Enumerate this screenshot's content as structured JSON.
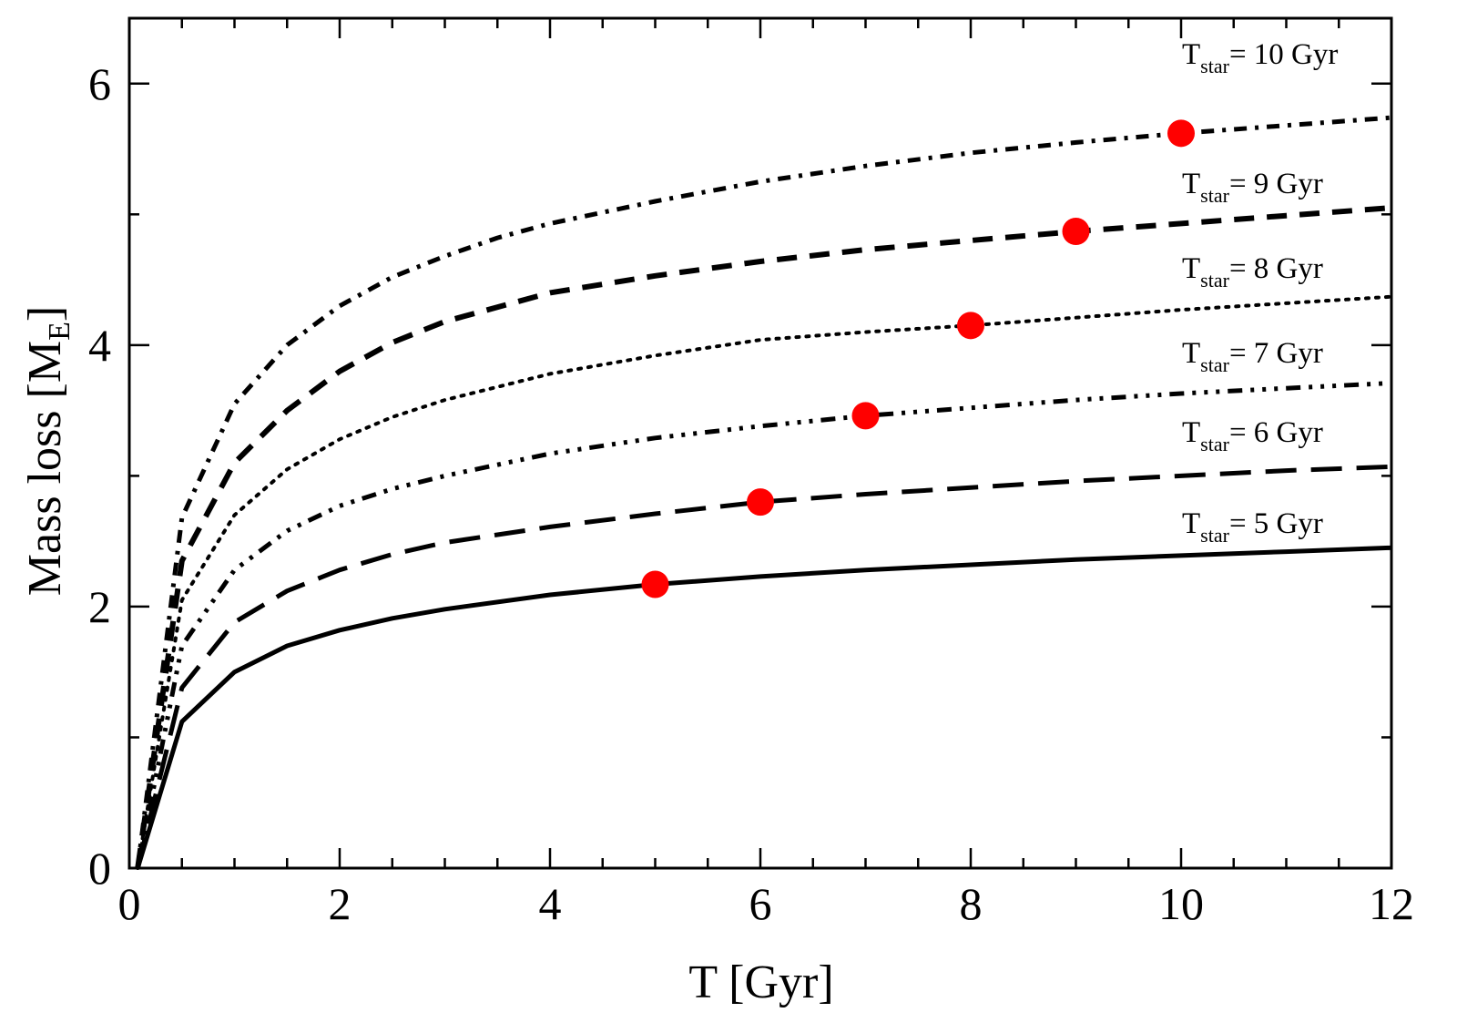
{
  "chart_data": {
    "type": "line",
    "title": "",
    "xlabel": "T [Gyr]",
    "ylabel": "Mass loss [M",
    "ylabel_sub": "E",
    "ylabel_close": "]",
    "xlim": [
      0,
      12
    ],
    "ylim": [
      0,
      6.5
    ],
    "xticks": [
      0,
      2,
      4,
      6,
      8,
      10,
      12
    ],
    "yticks": [
      0,
      2,
      4,
      6
    ],
    "grid": false,
    "legend": "inline labels at right end of each curve",
    "marker_color": "#ff0000",
    "line_color": "#000000",
    "series": [
      {
        "label_main": "T",
        "label_sub": "star",
        "label_rest": "= 5 Gyr",
        "style": "solid",
        "marker": [
          5,
          2.17
        ],
        "x": [
          0.08,
          0.5,
          1.0,
          1.5,
          2.0,
          2.5,
          3.0,
          4.0,
          5.0,
          6.0,
          7.0,
          8.0,
          9.0,
          10.0,
          11.0,
          12.0
        ],
        "y": [
          0.0,
          1.12,
          1.5,
          1.7,
          1.82,
          1.91,
          1.98,
          2.09,
          2.17,
          2.23,
          2.28,
          2.32,
          2.36,
          2.39,
          2.42,
          2.45
        ]
      },
      {
        "label_main": "T",
        "label_sub": "star",
        "label_rest": "= 6 Gyr",
        "style": "longdash",
        "marker": [
          6,
          2.8
        ],
        "x": [
          0.08,
          0.5,
          1.0,
          1.5,
          2.0,
          2.5,
          3.0,
          4.0,
          5.0,
          6.0,
          7.0,
          8.0,
          9.0,
          10.0,
          11.0,
          12.0
        ],
        "y": [
          0.0,
          1.38,
          1.88,
          2.12,
          2.28,
          2.4,
          2.49,
          2.61,
          2.71,
          2.8,
          2.86,
          2.91,
          2.96,
          3.0,
          3.04,
          3.07
        ]
      },
      {
        "label_main": "T",
        "label_sub": "star",
        "label_rest": "= 7 Gyr",
        "style": "dashdotdotdot",
        "marker": [
          7,
          3.46
        ],
        "x": [
          0.08,
          0.5,
          1.0,
          1.5,
          2.0,
          2.5,
          3.0,
          4.0,
          5.0,
          6.0,
          7.0,
          8.0,
          9.0,
          10.0,
          11.0,
          12.0
        ],
        "y": [
          0.0,
          1.7,
          2.28,
          2.58,
          2.77,
          2.9,
          3.0,
          3.17,
          3.29,
          3.38,
          3.46,
          3.52,
          3.58,
          3.63,
          3.67,
          3.71
        ]
      },
      {
        "label_main": "T",
        "label_sub": "star",
        "label_rest": "= 8 Gyr",
        "style": "dotted",
        "marker": [
          8,
          4.15
        ],
        "x": [
          0.08,
          0.5,
          1.0,
          1.5,
          2.0,
          2.5,
          3.0,
          4.0,
          5.0,
          6.0,
          7.0,
          8.0,
          9.0,
          10.0,
          11.0,
          12.0
        ],
        "y": [
          0.0,
          2.05,
          2.7,
          3.05,
          3.28,
          3.45,
          3.58,
          3.78,
          3.92,
          4.04,
          4.1,
          4.15,
          4.21,
          4.27,
          4.32,
          4.37
        ]
      },
      {
        "label_main": "T",
        "label_sub": "star",
        "label_rest": "= 9 Gyr",
        "style": "dashed",
        "marker": [
          9,
          4.87
        ],
        "x": [
          0.08,
          0.5,
          1.0,
          1.5,
          2.0,
          2.5,
          3.0,
          4.0,
          5.0,
          6.0,
          7.0,
          8.0,
          9.0,
          10.0,
          11.0,
          12.0
        ],
        "y": [
          0.0,
          2.35,
          3.1,
          3.5,
          3.8,
          4.02,
          4.18,
          4.4,
          4.53,
          4.64,
          4.73,
          4.8,
          4.87,
          4.93,
          4.99,
          5.05
        ]
      },
      {
        "label_main": "T",
        "label_sub": "star",
        "label_rest": "= 10 Gyr",
        "style": "dashdot",
        "marker": [
          10,
          5.62
        ],
        "x": [
          0.08,
          0.5,
          1.0,
          1.5,
          2.0,
          2.5,
          3.0,
          3.5,
          4.0,
          5.0,
          6.0,
          7.0,
          8.0,
          9.0,
          10.0,
          11.0,
          12.0
        ],
        "y": [
          0.0,
          2.68,
          3.55,
          4.0,
          4.3,
          4.52,
          4.68,
          4.82,
          4.93,
          5.1,
          5.25,
          5.37,
          5.47,
          5.55,
          5.62,
          5.68,
          5.74
        ]
      }
    ],
    "label_positions_y": [
      5,
      6,
      7,
      8,
      9,
      10
    ]
  }
}
